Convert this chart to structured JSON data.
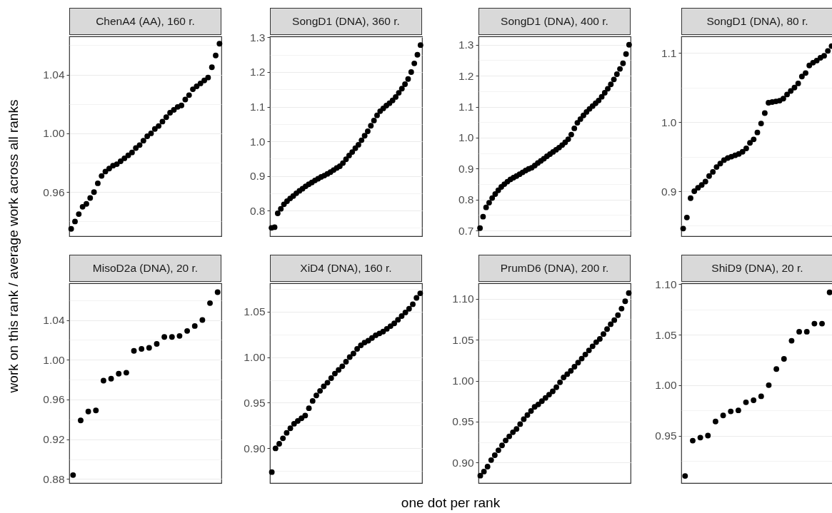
{
  "chart_data": [
    {
      "type": "scatter",
      "title": "ChenA4 (AA), 160 r.",
      "ylabel": "work on this rank / average work across all ranks",
      "color": "#000000",
      "marker": "circle",
      "grid": "y",
      "tick_labels": "y",
      "ylim": [
        0.93,
        1.066
      ],
      "yticks": [
        {
          "value": 0.94,
          "label": null
        },
        0.96,
        {
          "value": 0.98,
          "label": null
        },
        {
          "value": 1,
          "label": "1.00"
        },
        {
          "value": 1.02,
          "label": null
        },
        1.04,
        {
          "value": 1.06,
          "label": null
        }
      ],
      "categories": [
        null,
        null,
        null,
        null,
        null,
        null,
        null,
        null,
        null,
        null,
        null,
        null,
        null,
        null,
        null,
        null,
        null,
        null,
        null,
        null,
        null,
        null,
        null,
        null,
        null,
        null,
        null,
        null,
        null,
        null,
        null,
        null,
        null,
        null,
        null,
        null,
        null,
        null,
        null,
        null
      ],
      "values": [
        0.935,
        0.94,
        0.945,
        0.95,
        0.952,
        0.956,
        0.96,
        0.966,
        0.971,
        0.974,
        0.976,
        0.978,
        0.979,
        0.981,
        0.983,
        0.985,
        0.987,
        0.99,
        0.992,
        0.995,
        0.998,
        1.0,
        1.003,
        1.005,
        1.008,
        1.011,
        1.014,
        1.016,
        1.018,
        1.019,
        1.023,
        1.026,
        1.03,
        1.032,
        1.034,
        1.036,
        1.038,
        1.045,
        1.053,
        1.061
      ]
    },
    {
      "type": "scatter",
      "title": "SongD1 (DNA), 360 r.",
      "color": "#000000",
      "marker": "circle",
      "grid": "y",
      "tick_labels": "y",
      "ylim": [
        0.726,
        1.303
      ],
      "yticks": [
        {
          "value": 0.75,
          "label": null
        },
        0.8,
        {
          "value": 0.85,
          "label": null
        },
        0.9,
        {
          "value": 0.95,
          "label": null
        },
        {
          "value": 1,
          "label": "1.0"
        },
        {
          "value": 1.05,
          "label": null
        },
        1.1,
        {
          "value": 1.15,
          "label": null
        },
        1.2,
        {
          "value": 1.25,
          "label": null
        },
        1.3
      ],
      "categories": [
        null,
        null,
        null,
        null,
        null,
        null,
        null,
        null,
        null,
        null,
        null,
        null,
        null,
        null,
        null,
        null,
        null,
        null,
        null,
        null,
        null,
        null,
        null,
        null,
        null,
        null,
        null,
        null,
        null,
        null,
        null,
        null,
        null,
        null,
        null,
        null,
        null,
        null,
        null,
        null,
        null,
        null,
        null,
        null,
        null,
        null,
        null,
        null,
        null
      ],
      "values": [
        0.75,
        0.752,
        0.792,
        0.805,
        0.818,
        0.827,
        0.835,
        0.842,
        0.85,
        0.857,
        0.863,
        0.87,
        0.876,
        0.881,
        0.887,
        0.892,
        0.897,
        0.901,
        0.906,
        0.911,
        0.917,
        0.923,
        0.928,
        0.937,
        0.948,
        0.959,
        0.969,
        0.98,
        0.99,
        1.003,
        1.016,
        1.029,
        1.045,
        1.06,
        1.075,
        1.087,
        1.095,
        1.103,
        1.11,
        1.118,
        1.128,
        1.14,
        1.152,
        1.165,
        1.18,
        1.2,
        1.225,
        1.25,
        1.278
      ]
    },
    {
      "type": "scatter",
      "title": "SongD1 (DNA), 400 r.",
      "color": "#000000",
      "marker": "circle",
      "grid": "y",
      "tick_labels": "y",
      "ylim": [
        0.682,
        1.327
      ],
      "yticks": [
        0.7,
        {
          "value": 0.75,
          "label": null
        },
        0.8,
        {
          "value": 0.85,
          "label": null
        },
        0.9,
        {
          "value": 0.95,
          "label": null
        },
        {
          "value": 1,
          "label": "1.0"
        },
        {
          "value": 1.05,
          "label": null
        },
        1.1,
        {
          "value": 1.15,
          "label": null
        },
        1.2,
        {
          "value": 1.25,
          "label": null
        },
        1.3
      ],
      "categories": [
        null,
        null,
        null,
        null,
        null,
        null,
        null,
        null,
        null,
        null,
        null,
        null,
        null,
        null,
        null,
        null,
        null,
        null,
        null,
        null,
        null,
        null,
        null,
        null,
        null,
        null,
        null,
        null,
        null,
        null,
        null,
        null,
        null,
        null,
        null,
        null,
        null,
        null,
        null,
        null,
        null,
        null,
        null,
        null,
        null,
        null,
        null,
        null,
        null,
        null
      ],
      "values": [
        0.708,
        0.745,
        0.775,
        0.79,
        0.805,
        0.818,
        0.83,
        0.841,
        0.85,
        0.858,
        0.865,
        0.871,
        0.876,
        0.882,
        0.888,
        0.894,
        0.899,
        0.903,
        0.91,
        0.918,
        0.925,
        0.932,
        0.94,
        0.947,
        0.954,
        0.961,
        0.968,
        0.976,
        0.985,
        0.995,
        1.01,
        1.03,
        1.048,
        1.06,
        1.072,
        1.083,
        1.093,
        1.102,
        1.111,
        1.12,
        1.132,
        1.145,
        1.158,
        1.172,
        1.188,
        1.205,
        1.222,
        1.24,
        1.27,
        1.3
      ]
    },
    {
      "type": "scatter",
      "title": "SongD1 (DNA), 80 r.",
      "color": "#000000",
      "marker": "circle",
      "grid": "y",
      "tick_labels": "y",
      "ylim": [
        0.835,
        1.124
      ],
      "yticks": [
        {
          "value": 0.85,
          "label": null
        },
        0.9,
        {
          "value": 0.95,
          "label": null
        },
        {
          "value": 1,
          "label": "1.0"
        },
        {
          "value": 1.05,
          "label": null
        },
        1.1
      ],
      "categories": [
        null,
        null,
        null,
        null,
        null,
        null,
        null,
        null,
        null,
        null,
        null,
        null,
        null,
        null,
        null,
        null,
        null,
        null,
        null,
        null,
        null,
        null,
        null,
        null,
        null,
        null,
        null,
        null,
        null,
        null,
        null,
        null,
        null,
        null,
        null,
        null,
        null,
        null,
        null,
        null,
        null
      ],
      "values": [
        0.846,
        0.862,
        0.89,
        0.9,
        0.905,
        0.909,
        0.914,
        0.922,
        0.928,
        0.935,
        0.94,
        0.945,
        0.948,
        0.95,
        0.952,
        0.954,
        0.957,
        0.962,
        0.97,
        0.975,
        0.985,
        0.998,
        1.013,
        1.028,
        1.029,
        1.03,
        1.031,
        1.034,
        1.04,
        1.045,
        1.05,
        1.056,
        1.066,
        1.071,
        1.082,
        1.086,
        1.089,
        1.093,
        1.096,
        1.103,
        1.11
      ]
    },
    {
      "type": "scatter",
      "title": "MisoD2a (DNA), 20 r.",
      "color": "#000000",
      "marker": "circle",
      "grid": "y",
      "tick_labels": "y",
      "ylim": [
        0.876,
        1.077
      ],
      "yticks": [
        {
          "value": 0.88,
          "label": "0.88"
        },
        {
          "value": 0.9,
          "label": null
        },
        0.92,
        {
          "value": 0.94,
          "label": null
        },
        0.96,
        {
          "value": 0.98,
          "label": null
        },
        {
          "value": 1,
          "label": "1.00"
        },
        {
          "value": 1.02,
          "label": null
        },
        1.04,
        {
          "value": 1.06,
          "label": null
        }
      ],
      "categories": [
        null,
        null,
        null,
        null,
        null,
        null,
        null,
        null,
        null,
        null,
        null,
        null,
        null,
        null,
        null,
        null,
        null,
        null,
        null,
        null
      ],
      "values": [
        0.884,
        0.939,
        0.948,
        0.949,
        0.979,
        0.981,
        0.986,
        0.987,
        1.009,
        1.011,
        1.012,
        1.016,
        1.023,
        1.023,
        1.024,
        1.029,
        1.034,
        1.04,
        1.057,
        1.068
      ]
    },
    {
      "type": "scatter",
      "title": "XiD4 (DNA), 160 r.",
      "xlabel": "one dot per rank",
      "color": "#000000",
      "marker": "circle",
      "grid": "y",
      "tick_labels": "y",
      "ylim": [
        0.862,
        1.081
      ],
      "yticks": [
        {
          "value": 0.875,
          "label": null
        },
        {
          "value": 0.9,
          "label": "0.90"
        },
        {
          "value": 0.925,
          "label": null
        },
        0.95,
        {
          "value": 0.975,
          "label": null
        },
        {
          "value": 1,
          "label": "1.00"
        },
        {
          "value": 1.025,
          "label": null
        },
        1.05,
        {
          "value": 1.075,
          "label": null
        }
      ],
      "categories": [
        null,
        null,
        null,
        null,
        null,
        null,
        null,
        null,
        null,
        null,
        null,
        null,
        null,
        null,
        null,
        null,
        null,
        null,
        null,
        null,
        null,
        null,
        null,
        null,
        null,
        null,
        null,
        null,
        null,
        null,
        null,
        null,
        null,
        null,
        null,
        null,
        null,
        null,
        null,
        null,
        null
      ],
      "values": [
        0.874,
        0.9,
        0.905,
        0.911,
        0.917,
        0.922,
        0.927,
        0.93,
        0.933,
        0.936,
        0.944,
        0.952,
        0.958,
        0.963,
        0.968,
        0.972,
        0.977,
        0.982,
        0.986,
        0.99,
        0.995,
        1.0,
        1.004,
        1.009,
        1.013,
        1.016,
        1.018,
        1.021,
        1.024,
        1.026,
        1.028,
        1.031,
        1.034,
        1.037,
        1.041,
        1.045,
        1.049,
        1.053,
        1.058,
        1.065,
        1.07
      ]
    },
    {
      "type": "scatter",
      "title": "PrumD6 (DNA), 200 r.",
      "color": "#000000",
      "marker": "circle",
      "grid": "y",
      "tick_labels": "y",
      "ylim": [
        0.875,
        1.119
      ],
      "yticks": [
        {
          "value": 0.9,
          "label": "0.90"
        },
        {
          "value": 0.925,
          "label": null
        },
        0.95,
        {
          "value": 0.975,
          "label": null
        },
        {
          "value": 1,
          "label": "1.00"
        },
        {
          "value": 1.025,
          "label": null
        },
        1.05,
        {
          "value": 1.075,
          "label": null
        },
        {
          "value": 1.1,
          "label": "1.10"
        }
      ],
      "categories": [
        null,
        null,
        null,
        null,
        null,
        null,
        null,
        null,
        null,
        null,
        null,
        null,
        null,
        null,
        null,
        null,
        null,
        null,
        null,
        null,
        null,
        null,
        null,
        null,
        null,
        null,
        null,
        null,
        null,
        null,
        null,
        null,
        null,
        null,
        null,
        null,
        null,
        null,
        null,
        null,
        null,
        null
      ],
      "values": [
        0.884,
        0.889,
        0.895,
        0.903,
        0.909,
        0.915,
        0.921,
        0.927,
        0.932,
        0.937,
        0.941,
        0.947,
        0.953,
        0.958,
        0.963,
        0.968,
        0.971,
        0.975,
        0.979,
        0.983,
        0.987,
        0.992,
        0.998,
        1.004,
        1.008,
        1.012,
        1.017,
        1.022,
        1.027,
        1.032,
        1.037,
        1.042,
        1.047,
        1.051,
        1.057,
        1.063,
        1.069,
        1.074,
        1.08,
        1.088,
        1.097,
        1.107
      ]
    },
    {
      "type": "scatter",
      "title": "ShiD9 (DNA), 20 r.",
      "color": "#000000",
      "marker": "circle",
      "grid": "y",
      "tick_labels": "y",
      "ylim": [
        0.903,
        1.101
      ],
      "yticks": [
        {
          "value": 0.925,
          "label": null
        },
        0.95,
        {
          "value": 0.975,
          "label": null
        },
        {
          "value": 1,
          "label": "1.00"
        },
        {
          "value": 1.025,
          "label": null
        },
        1.05,
        {
          "value": 1.075,
          "label": null
        },
        {
          "value": 1.1,
          "label": "1.10"
        }
      ],
      "categories": [
        null,
        null,
        null,
        null,
        null,
        null,
        null,
        null,
        null,
        null,
        null,
        null,
        null,
        null,
        null,
        null,
        null,
        null,
        null,
        null
      ],
      "values": [
        0.91,
        0.945,
        0.948,
        0.95,
        0.964,
        0.97,
        0.974,
        0.975,
        0.983,
        0.985,
        0.989,
        1.0,
        1.016,
        1.026,
        1.044,
        1.053,
        1.053,
        1.061,
        1.061,
        1.092
      ]
    }
  ]
}
